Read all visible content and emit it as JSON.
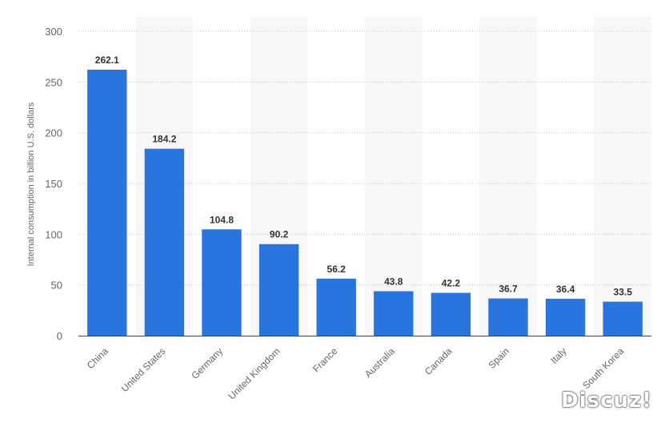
{
  "chart_data": {
    "type": "bar",
    "categories": [
      "China",
      "United States",
      "Germany",
      "United Kingdom",
      "France",
      "Australia",
      "Canada",
      "Spain",
      "Italy",
      "South Korea"
    ],
    "values": [
      262.1,
      184.2,
      104.8,
      90.2,
      56.2,
      43.8,
      42.2,
      36.7,
      36.4,
      33.5
    ],
    "data_labels": [
      "262.1",
      "184.2",
      "104.8",
      "90.2",
      "56.2",
      "43.8",
      "42.2",
      "36.7",
      "36.4",
      "33.5"
    ],
    "title": "",
    "xlabel": "",
    "ylabel": "Internal consumption in billion U.S. dollars",
    "ylim": [
      0,
      300
    ],
    "yticks": [
      0,
      50,
      100,
      150,
      200,
      250,
      300
    ],
    "grid": true,
    "bar_color": "#2a74de",
    "band_color": "#f7f7f7"
  },
  "watermark": "Discuz!"
}
